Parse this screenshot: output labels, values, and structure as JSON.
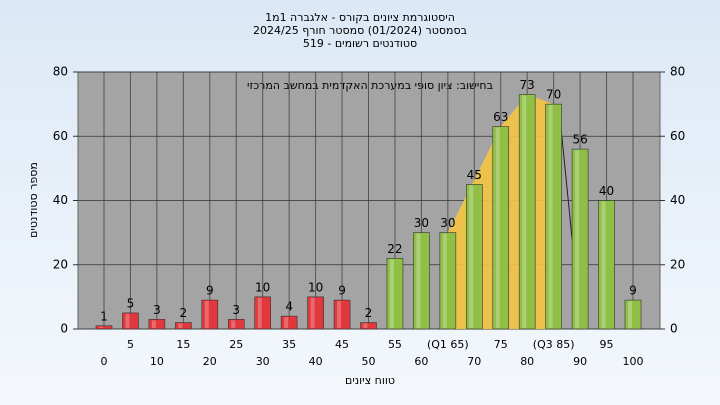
{
  "chart_data": {
    "type": "bar",
    "title": "היסטוגרמת ציונים בקורס - אלגברה 1מ1",
    "subtitle": "בסמסטר  (01/2024)  סמסטר חורף 2024/25",
    "subtitle2": "סטודנטים רשומים - 519",
    "annotation": "בחישוב: ציון סופי במערכת האקדמית במחשב המרכזי",
    "y_label": "מספר סטודנטים",
    "x_label": "טווח ציונים",
    "categories": [
      "0",
      "5",
      "10",
      "15",
      "20",
      "25",
      "30",
      "35",
      "40",
      "45",
      "50",
      "55",
      "60",
      "(Q1 65)",
      "70",
      "75",
      "80",
      "(Q3 85)",
      "90",
      "95",
      "100"
    ],
    "values": [
      1,
      5,
      3,
      2,
      9,
      3,
      10,
      4,
      10,
      9,
      2,
      22,
      30,
      30,
      45,
      63,
      73,
      70,
      56,
      40,
      9
    ],
    "colors": [
      "#e0383c",
      "#e0383c",
      "#e0383c",
      "#e0383c",
      "#e0383c",
      "#e0383c",
      "#e0383c",
      "#e0383c",
      "#e0383c",
      "#e0383c",
      "#e0383c",
      "#8fbf45",
      "#8fbf45",
      "#8fbf45",
      "#8fbf45",
      "#8fbf45",
      "#8fbf45",
      "#8fbf45",
      "#8fbf45",
      "#8fbf45",
      "#8fbf45"
    ],
    "ylim": [
      0,
      80
    ],
    "yticks": [
      0,
      20,
      40,
      60,
      80
    ],
    "y2lim": [
      0,
      80
    ],
    "y2ticks": [
      0,
      20,
      40,
      60,
      80
    ],
    "grid": true
  }
}
